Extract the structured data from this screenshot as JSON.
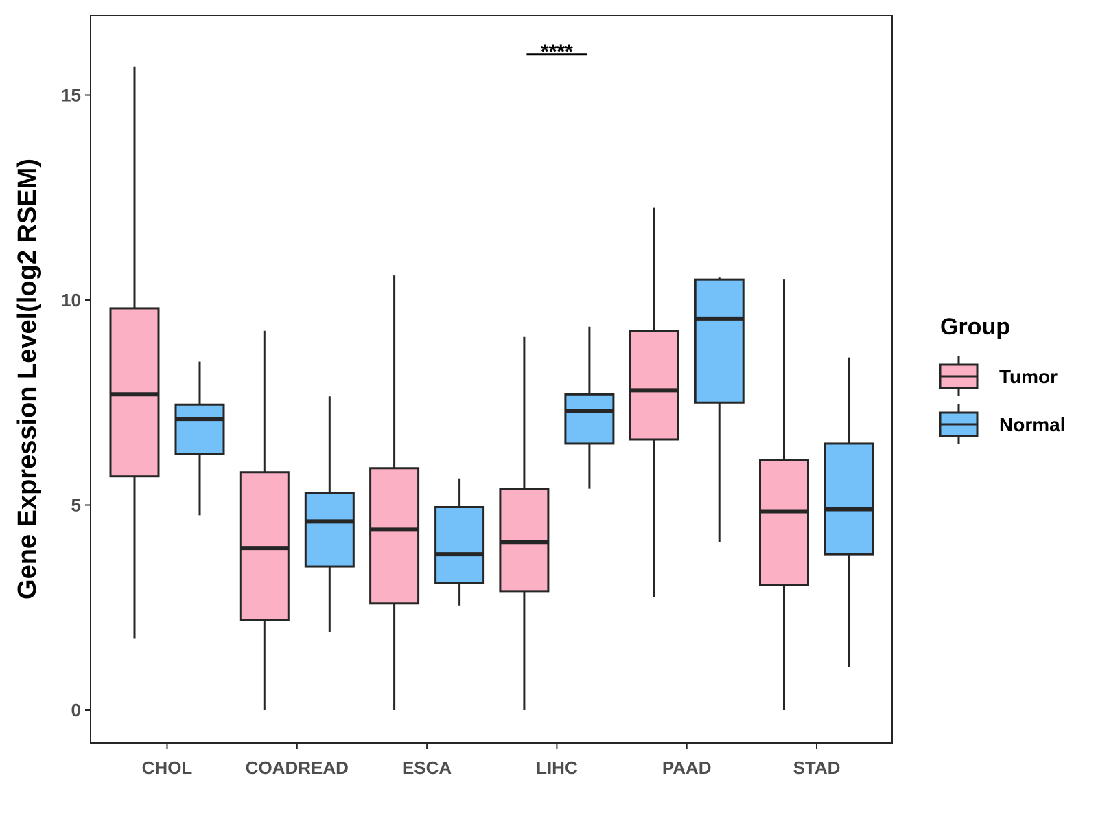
{
  "chart_data": {
    "type": "boxplot",
    "title": "",
    "xlabel": "",
    "ylabel": "Gene Expression Level(log2 RSEM)",
    "ylim": [
      -0.8,
      16.9
    ],
    "yticks": [
      0,
      5,
      10,
      15
    ],
    "grid": false,
    "legend_position": "right",
    "legend_title": "Group",
    "categories": [
      "CHOL",
      "COADREAD",
      "ESCA",
      "LIHC",
      "PAAD",
      "STAD"
    ],
    "series": [
      {
        "name": "Tumor",
        "color": "#FBB1C3",
        "boxes": [
          {
            "min": 1.75,
            "q1": 5.7,
            "median": 7.7,
            "q3": 9.8,
            "max": 15.7
          },
          {
            "min": 0.0,
            "q1": 2.2,
            "median": 3.95,
            "q3": 5.8,
            "max": 9.25
          },
          {
            "min": 0.0,
            "q1": 2.6,
            "median": 4.4,
            "q3": 5.9,
            "max": 10.6
          },
          {
            "min": 0.0,
            "q1": 2.9,
            "median": 4.1,
            "q3": 5.4,
            "max": 9.1
          },
          {
            "min": 2.75,
            "q1": 6.6,
            "median": 7.8,
            "q3": 9.25,
            "max": 12.25
          },
          {
            "min": 0.0,
            "q1": 3.05,
            "median": 4.85,
            "q3": 6.1,
            "max": 10.5
          }
        ]
      },
      {
        "name": "Normal",
        "color": "#74C0F8",
        "boxes": [
          {
            "min": 4.75,
            "q1": 6.25,
            "median": 7.1,
            "q3": 7.45,
            "max": 8.5
          },
          {
            "min": 1.9,
            "q1": 3.5,
            "median": 4.6,
            "q3": 5.3,
            "max": 7.65
          },
          {
            "min": 2.55,
            "q1": 3.1,
            "median": 3.8,
            "q3": 4.95,
            "max": 5.65
          },
          {
            "min": 5.4,
            "q1": 6.5,
            "median": 7.3,
            "q3": 7.7,
            "max": 9.35
          },
          {
            "min": 4.1,
            "q1": 7.5,
            "median": 9.55,
            "q3": 10.5,
            "max": 10.55
          },
          {
            "min": 1.05,
            "q1": 3.8,
            "median": 4.9,
            "q3": 6.5,
            "max": 8.6
          }
        ]
      }
    ],
    "annotations": [
      {
        "category": "LIHC",
        "text": "****",
        "y": 16.0
      }
    ]
  },
  "colors": {
    "tumor": "#FBB1C3",
    "normal": "#74C0F8",
    "outline": "#262626",
    "axis_text": "#4d4d4d"
  }
}
